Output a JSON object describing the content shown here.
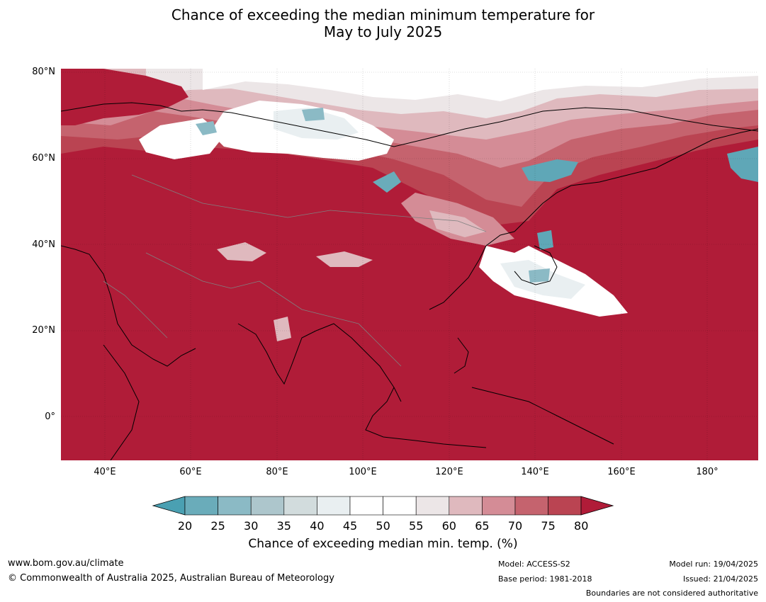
{
  "title": {
    "line1": "Chance of exceeding the median minimum temperature for",
    "line2": "May to July 2025"
  },
  "map": {
    "lat_labels": [
      "80°N",
      "60°N",
      "40°N",
      "20°N",
      "0°"
    ],
    "lon_labels": [
      "40°E",
      "60°E",
      "80°E",
      "100°E",
      "120°E",
      "140°E",
      "160°E",
      "180°"
    ],
    "dominant_category": "80",
    "colors": {
      "ocean_and_land_high": "#b01c38",
      "cool": "#5fa7b7",
      "neutral": "#ffffff",
      "coast": "#000000",
      "border": "#808080"
    }
  },
  "colorbar": {
    "ticks": [
      "20",
      "25",
      "30",
      "35",
      "40",
      "45",
      "50",
      "55",
      "60",
      "65",
      "70",
      "75",
      "80"
    ],
    "colors": [
      "#6aacba",
      "#8bbac5",
      "#adc6cc",
      "#d2dcdd",
      "#e9eff1",
      "#ffffff",
      "#ffffff",
      "#ece6e7",
      "#dfb9be",
      "#d48c96",
      "#c5636e",
      "#ba4452"
    ],
    "low_extend_color": "#4aa0b2",
    "high_extend_color": "#b01c38",
    "label": "Chance of exceeding median min. temp. (%)"
  },
  "footer": {
    "website": "www.bom.gov.au/climate",
    "copyright": "© Commonwealth of Australia 2025, Australian Bureau of Meteorology",
    "model": "Model: ACCESS-S2",
    "base_period": "Base period: 1981-2018",
    "model_run": "Model run: 19/04/2025",
    "issued": "Issued: 21/04/2025",
    "boundaries": "Boundaries are not considered authoritative"
  }
}
